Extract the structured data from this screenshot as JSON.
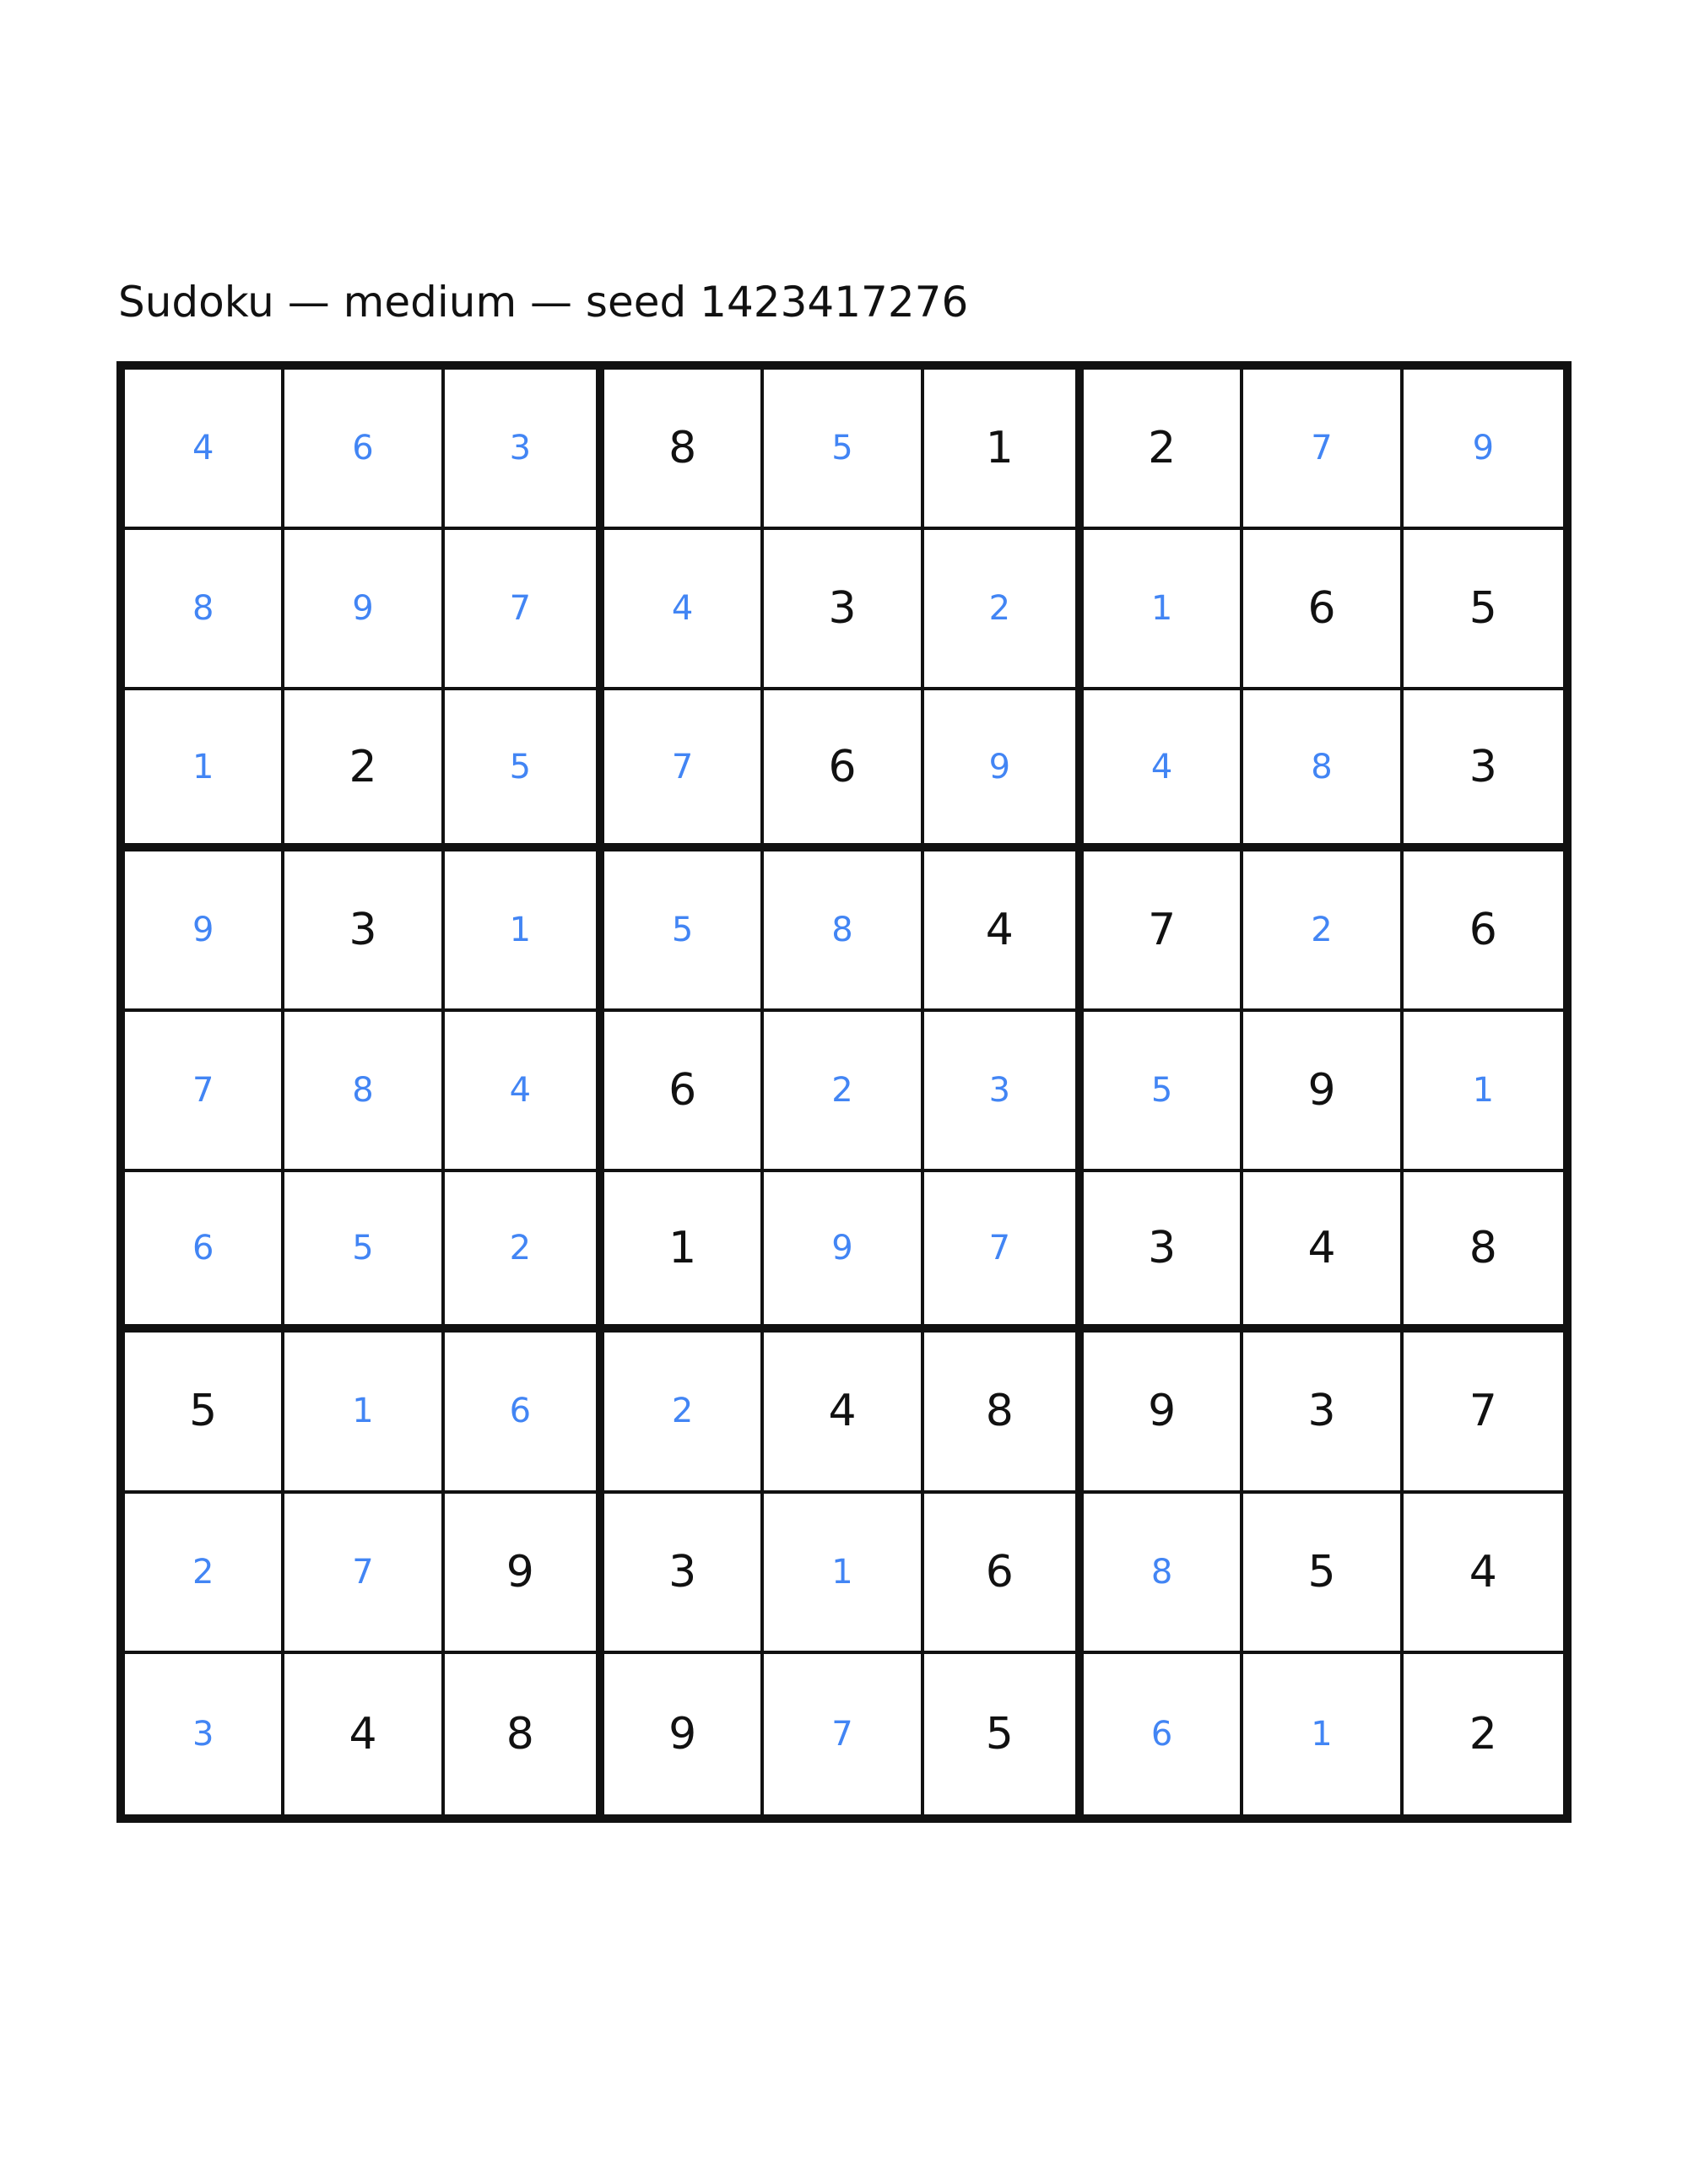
{
  "title": "Sudoku — medium — seed 1423417276",
  "colors": {
    "background": "#ffffff",
    "grid_line": "#111111",
    "given_digit": "#111111",
    "solved_digit": "#4285f4"
  },
  "grid": {
    "size": 9,
    "values": [
      [
        4,
        6,
        3,
        8,
        5,
        1,
        2,
        7,
        9
      ],
      [
        8,
        9,
        7,
        4,
        3,
        2,
        1,
        6,
        5
      ],
      [
        1,
        2,
        5,
        7,
        6,
        9,
        4,
        8,
        3
      ],
      [
        9,
        3,
        1,
        5,
        8,
        4,
        7,
        2,
        6
      ],
      [
        7,
        8,
        4,
        6,
        2,
        3,
        5,
        9,
        1
      ],
      [
        6,
        5,
        2,
        1,
        9,
        7,
        3,
        4,
        8
      ],
      [
        5,
        1,
        6,
        2,
        4,
        8,
        9,
        3,
        7
      ],
      [
        2,
        7,
        9,
        3,
        1,
        6,
        8,
        5,
        4
      ],
      [
        3,
        4,
        8,
        9,
        7,
        5,
        6,
        1,
        2
      ]
    ],
    "given": [
      [
        false,
        false,
        false,
        true,
        false,
        true,
        true,
        false,
        false
      ],
      [
        false,
        false,
        false,
        false,
        true,
        false,
        false,
        true,
        true
      ],
      [
        false,
        true,
        false,
        false,
        true,
        false,
        false,
        false,
        true
      ],
      [
        false,
        true,
        false,
        false,
        false,
        true,
        true,
        false,
        true
      ],
      [
        false,
        false,
        false,
        true,
        false,
        false,
        false,
        true,
        false
      ],
      [
        false,
        false,
        false,
        true,
        false,
        false,
        true,
        true,
        true
      ],
      [
        true,
        false,
        false,
        false,
        true,
        true,
        true,
        true,
        true
      ],
      [
        false,
        false,
        true,
        true,
        false,
        true,
        false,
        true,
        true
      ],
      [
        false,
        true,
        true,
        true,
        false,
        true,
        false,
        false,
        true
      ]
    ]
  }
}
